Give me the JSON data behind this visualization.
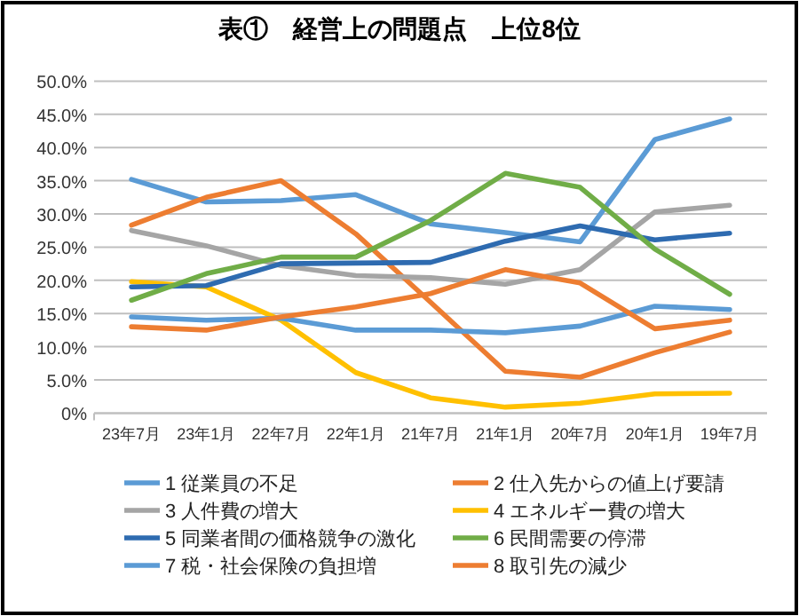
{
  "chart_data": {
    "type": "line",
    "title": "表①　経営上の問題点　上位8位",
    "categories": [
      "23年7月",
      "23年1月",
      "22年7月",
      "22年1月",
      "21年7月",
      "21年1月",
      "20年7月",
      "20年1月",
      "19年7月"
    ],
    "series": [
      {
        "name": "1 従業員の不足",
        "color": "#5b9bd5",
        "values": [
          35.2,
          31.8,
          32.0,
          32.9,
          28.5,
          27.2,
          25.8,
          41.2,
          44.3
        ]
      },
      {
        "name": "2 仕入先からの値上げ要請",
        "color": "#ed7d31",
        "values": [
          28.3,
          32.5,
          35.0,
          27.0,
          16.7,
          6.3,
          5.4,
          9.1,
          12.2
        ]
      },
      {
        "name": "3 人件費の増大",
        "color": "#a5a5a5",
        "values": [
          27.5,
          25.2,
          22.2,
          20.7,
          20.4,
          19.4,
          21.6,
          30.3,
          31.3
        ]
      },
      {
        "name": "4 エネルギー費の増大",
        "color": "#ffc000",
        "values": [
          19.8,
          19.0,
          14.0,
          6.1,
          2.3,
          0.9,
          1.5,
          2.9,
          3.0
        ]
      },
      {
        "name": "5 同業者間の価格競争の激化",
        "color": "#2e6bb0",
        "values": [
          19.0,
          19.2,
          22.5,
          22.6,
          22.7,
          25.9,
          28.2,
          26.1,
          27.1
        ]
      },
      {
        "name": "6 民間需要の停滞",
        "color": "#70ad47",
        "values": [
          17.0,
          21.0,
          23.5,
          23.5,
          29.0,
          36.1,
          34.0,
          24.7,
          17.9
        ]
      },
      {
        "name": "7 税・社会保険の負担増",
        "color": "#5b9bd5",
        "values": [
          14.5,
          14.0,
          14.3,
          12.5,
          12.5,
          12.1,
          13.1,
          16.1,
          15.6
        ]
      },
      {
        "name": "8 取引先の減少",
        "color": "#ed7d31",
        "values": [
          13.0,
          12.5,
          14.5,
          16.0,
          18.0,
          21.6,
          19.6,
          12.7,
          14.0
        ]
      }
    ],
    "ylim": [
      0,
      50
    ],
    "yticks": [
      {
        "value": 0,
        "label": "0%"
      },
      {
        "value": 5,
        "label": "5.0%"
      },
      {
        "value": 10,
        "label": "10.0%"
      },
      {
        "value": 15,
        "label": "15.0%"
      },
      {
        "value": 20,
        "label": "20.0%"
      },
      {
        "value": 25,
        "label": "25.0%"
      },
      {
        "value": 30,
        "label": "30.0%"
      },
      {
        "value": 35,
        "label": "35.0%"
      },
      {
        "value": 40,
        "label": "40.0%"
      },
      {
        "value": 45,
        "label": "45.0%"
      },
      {
        "value": 50,
        "label": "50.0%"
      }
    ],
    "grid": "y",
    "legend": "bottom",
    "marker": "none",
    "line_style": "solid"
  }
}
